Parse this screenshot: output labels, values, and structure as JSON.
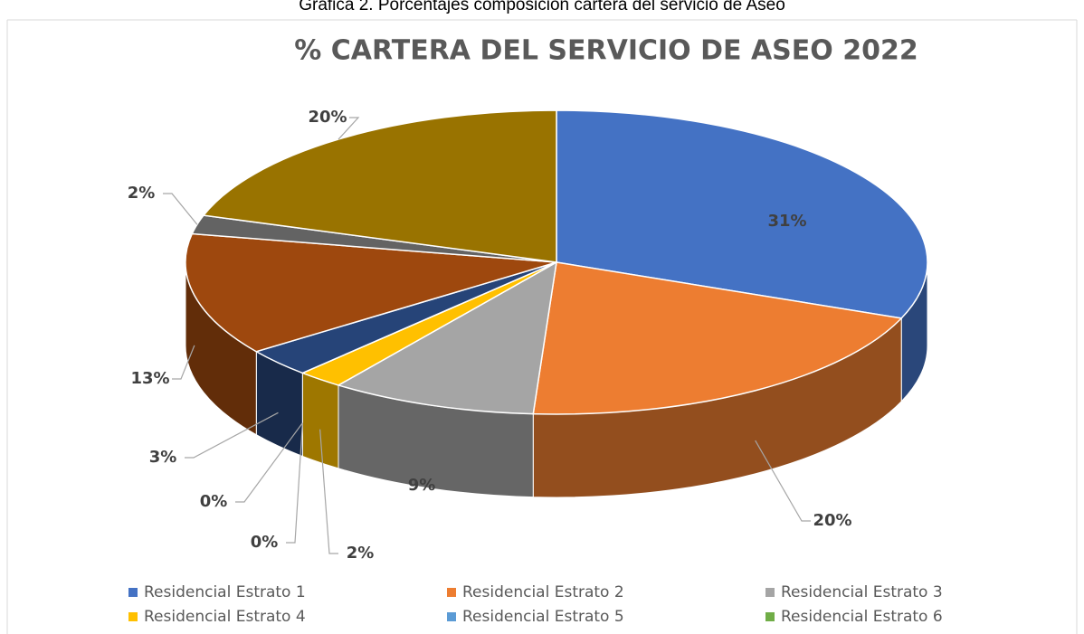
{
  "chart_data": {
    "type": "pie3d",
    "caption": "Gráfica 2. Porcentajes composición cartera del servicio de Aseo",
    "title": "% CARTERA DEL SERVICIO DE ASEO 2022",
    "categories": [
      "Residencial Estrato 1",
      "Residencial Estrato 2",
      "Residencial Estrato 3",
      "Residencial Estrato 4",
      "Residencial Estrato 5",
      "Residencial Estrato 6",
      null,
      null,
      null,
      null
    ],
    "values": [
      31,
      20,
      9,
      2,
      0,
      0,
      3,
      13,
      2,
      20
    ],
    "value_labels": [
      "31%",
      "20%",
      "9%",
      "2%",
      "0%",
      "0%",
      "3%",
      "13%",
      "2%",
      "20%"
    ],
    "colors": [
      "#4472c4",
      "#ed7d31",
      "#a5a5a5",
      "#ffc000",
      "#5b9bd5",
      "#70ad47",
      "#264478",
      "#9e480e",
      "#636363",
      "#997300"
    ],
    "legend": "bottom"
  }
}
